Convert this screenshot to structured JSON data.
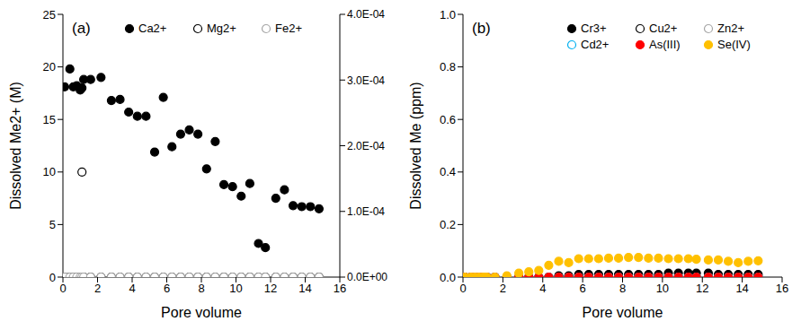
{
  "chart_data": [
    {
      "type": "scatter",
      "annotation": "(a)",
      "x_label": "Pore volume",
      "y_label": "Dissolved Me2+ (M)",
      "xlim": [
        0,
        16
      ],
      "xticks": [
        0,
        2,
        4,
        6,
        8,
        10,
        12,
        14,
        16
      ],
      "ylim": [
        0,
        25
      ],
      "yticks": [
        0,
        5,
        10,
        15,
        20,
        25
      ],
      "y2lim": [
        0,
        0.0004
      ],
      "y2ticks": [
        {
          "value": 0,
          "label": "0.0E+00"
        },
        {
          "value": 0.0001,
          "label": "1.0E-04"
        },
        {
          "value": 0.0002,
          "label": "2.0E-04"
        },
        {
          "value": 0.0003,
          "label": "3.0E-04"
        },
        {
          "value": 0.0004,
          "label": "4.0E-04"
        }
      ],
      "grid": false,
      "legend": "upper right",
      "x": [
        0.1,
        0.4,
        0.6,
        0.8,
        1.0,
        1.1,
        1.2,
        1.6,
        2.2,
        2.8,
        3.3,
        3.8,
        4.3,
        4.8,
        5.3,
        5.8,
        6.3,
        6.8,
        7.3,
        7.8,
        8.3,
        8.8,
        9.3,
        9.8,
        10.3,
        10.8,
        11.3,
        11.7,
        12.3,
        12.8,
        13.3,
        13.8,
        14.3,
        14.8
      ],
      "series": [
        {
          "name": "Ca2+",
          "color": "#000000",
          "marker": "filled",
          "values": [
            18.1,
            19.8,
            18.1,
            18.2,
            17.8,
            18.0,
            18.8,
            18.8,
            19.0,
            16.8,
            16.9,
            15.7,
            15.3,
            15.3,
            11.9,
            17.1,
            12.4,
            13.6,
            14.0,
            13.6,
            10.3,
            12.9,
            8.8,
            8.6,
            7.7,
            8.9,
            3.2,
            2.8,
            7.5,
            8.3,
            6.8,
            6.7,
            6.7,
            6.5
          ]
        },
        {
          "name": "Mg2+",
          "color": "#000000",
          "marker": "open",
          "values": [
            0,
            0,
            0,
            0,
            0,
            10,
            0,
            0,
            0,
            0,
            0,
            0,
            0,
            0,
            0,
            0,
            0,
            0,
            0,
            0,
            0,
            0,
            0,
            0,
            0,
            0,
            0,
            0,
            0,
            0,
            0,
            0,
            0,
            0
          ]
        },
        {
          "name": "Fe2+",
          "color": "#a6a6a6",
          "marker": "open",
          "axis": "y2",
          "values": [
            0,
            0,
            0,
            0,
            0,
            0,
            0,
            0,
            0,
            0,
            0,
            0,
            0,
            0,
            0,
            0,
            0,
            0,
            0,
            0,
            0,
            0,
            0,
            0,
            0,
            0,
            0,
            0,
            0,
            0,
            0,
            0,
            0,
            0
          ]
        }
      ]
    },
    {
      "type": "scatter",
      "annotation": "(b)",
      "x_label": "Pore volume",
      "y_label": "Dissolved Me (ppm)",
      "xlim": [
        0,
        16
      ],
      "xticks": [
        0,
        2,
        4,
        6,
        8,
        10,
        12,
        14,
        16
      ],
      "ylim": [
        0,
        1
      ],
      "yticks": [
        {
          "value": 0,
          "label": "0.0"
        },
        0.2,
        0.4,
        0.6,
        0.8,
        {
          "value": 1,
          "label": "1.0"
        }
      ],
      "grid": false,
      "legend": "upper right",
      "x": [
        0.1,
        0.4,
        0.6,
        0.8,
        1.0,
        1.1,
        1.2,
        1.6,
        2.2,
        2.8,
        3.3,
        3.8,
        4.3,
        4.8,
        5.3,
        5.8,
        6.3,
        6.8,
        7.3,
        7.8,
        8.3,
        8.8,
        9.3,
        9.8,
        10.3,
        10.8,
        11.3,
        11.7,
        12.3,
        12.8,
        13.3,
        13.8,
        14.3,
        14.8
      ],
      "series": [
        {
          "name": "Cr3+",
          "color": "#000000",
          "marker": "filled",
          "values": [
            0,
            0,
            0,
            0,
            0,
            0,
            0,
            0,
            0,
            0,
            0,
            0,
            0,
            0.005,
            0.005,
            0.01,
            0.01,
            0.01,
            0.01,
            0.01,
            0.01,
            0.01,
            0.01,
            0.01,
            0.015,
            0.015,
            0.015,
            0.015,
            0.015,
            0.01,
            0.01,
            0.01,
            0.01,
            0.01
          ]
        },
        {
          "name": "Cu2+",
          "color": "#000000",
          "marker": "open",
          "values": [
            0,
            0,
            0,
            0,
            0,
            0,
            0,
            0,
            0,
            0,
            0,
            0,
            0,
            0,
            0,
            0,
            0,
            0,
            0,
            0,
            0,
            0,
            0,
            0,
            0,
            0,
            0,
            0,
            0,
            0,
            0,
            0,
            0,
            0
          ]
        },
        {
          "name": "Zn2+",
          "color": "#a6a6a6",
          "marker": "open",
          "values": [
            0,
            0,
            0,
            0,
            0,
            0,
            0,
            0,
            0,
            0,
            0,
            0,
            0,
            0,
            0,
            0,
            0,
            0,
            0,
            0,
            0,
            0,
            0,
            0,
            0,
            0,
            0,
            0,
            0,
            0,
            0,
            0,
            0,
            0
          ]
        },
        {
          "name": "Cd2+",
          "color": "#00b0f0",
          "marker": "open",
          "values": [
            0,
            0,
            0,
            0,
            0,
            0,
            0,
            0,
            0,
            0,
            0,
            0,
            0,
            0,
            0,
            0,
            0,
            0,
            0,
            0,
            0,
            0,
            0,
            0,
            0,
            0,
            0,
            0,
            0,
            0,
            0,
            0,
            0,
            0
          ]
        },
        {
          "name": "As(III)",
          "color": "#ff0000",
          "marker": "filled",
          "values": [
            0,
            0,
            0,
            0,
            0,
            0,
            0,
            0,
            0,
            0,
            0,
            0,
            0,
            0,
            0,
            0,
            0,
            0,
            0,
            0,
            0,
            0,
            0,
            0,
            0,
            0,
            0,
            0,
            0,
            0,
            0,
            0,
            0,
            0
          ]
        },
        {
          "name": "Se(IV)",
          "color": "#ffc000",
          "marker": "filled",
          "values": [
            0,
            0,
            0,
            0,
            0,
            0,
            0,
            0,
            0.005,
            0.015,
            0.02,
            0.025,
            0.045,
            0.06,
            0.055,
            0.07,
            0.07,
            0.07,
            0.072,
            0.072,
            0.075,
            0.075,
            0.072,
            0.072,
            0.07,
            0.07,
            0.07,
            0.068,
            0.065,
            0.065,
            0.06,
            0.055,
            0.06,
            0.062
          ]
        }
      ]
    }
  ]
}
